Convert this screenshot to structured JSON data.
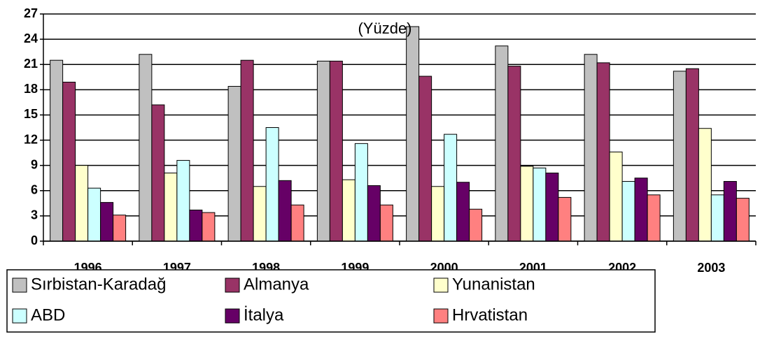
{
  "chart_data": {
    "type": "bar",
    "title": "(Yüzde)",
    "categories": [
      "1996",
      "1997",
      "1998",
      "1999",
      "2000",
      "2001",
      "2002",
      "2003"
    ],
    "series": [
      {
        "name": "Sırbistan-Karadağ",
        "color": "#c0c0c0",
        "values": [
          21.5,
          22.2,
          18.4,
          21.4,
          25.5,
          23.2,
          22.2,
          20.2
        ]
      },
      {
        "name": "Almanya",
        "color": "#993366",
        "values": [
          18.9,
          16.2,
          21.5,
          21.4,
          19.6,
          20.8,
          21.2,
          20.5
        ]
      },
      {
        "name": "Yunanistan",
        "color": "#ffffcc",
        "values": [
          9,
          8.1,
          6.5,
          7.3,
          6.5,
          8.9,
          10.6,
          13.4
        ]
      },
      {
        "name": "ABD",
        "color": "#ccffff",
        "values": [
          6.3,
          9.6,
          13.5,
          11.6,
          12.7,
          8.7,
          7.1,
          5.5
        ]
      },
      {
        "name": "İtalya",
        "color": "#660066",
        "values": [
          4.6,
          3.7,
          7.2,
          6.6,
          7.0,
          8.1,
          7.5,
          7.1
        ]
      },
      {
        "name": "Hrvatistan",
        "color": "#ff8080",
        "values": [
          3.1,
          3.4,
          4.3,
          4.3,
          3.8,
          5.2,
          5.5,
          5.1
        ]
      }
    ],
    "ylim": [
      0,
      27
    ],
    "yticks": [
      0,
      3,
      6,
      9,
      12,
      15,
      18,
      21,
      24,
      27
    ],
    "grid": true
  }
}
